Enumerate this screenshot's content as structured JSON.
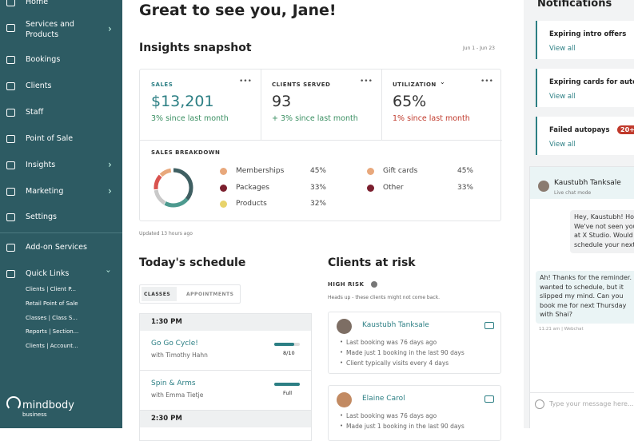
{
  "sidebar": {
    "items": [
      "Home",
      "Services and Products",
      "Bookings",
      "Clients",
      "Staff",
      "Point of Sale",
      "Insights",
      "Marketing",
      "Settings",
      "Add-on Services",
      "Quick Links"
    ],
    "quick_links": [
      "Clients | Client P...",
      "Retail Point of Sale",
      "Classes | Class S...",
      "Reports | Section...",
      "Clients | Account..."
    ],
    "logo": "mindbody",
    "logo_sub": "business"
  },
  "greeting": "Great to see you, Jane!",
  "insights": {
    "title": "Insights snapshot",
    "date_range": "Jun 1 - Jun 23",
    "metrics": [
      {
        "label": "SALES",
        "value": "$13,201",
        "change": "3% since last month"
      },
      {
        "label": "CLIENTS SERVED",
        "value": "93",
        "change": "+ 3% since last month"
      },
      {
        "label": "UTILIZATION",
        "value": "65%",
        "change": "1% since last month"
      }
    ],
    "breakdown": {
      "title": "SALES BREAKDOWN",
      "items": [
        {
          "name": "Memberships",
          "value": "45%"
        },
        {
          "name": "Packages",
          "value": "33%"
        },
        {
          "name": "Products",
          "value": "32%"
        },
        {
          "name": "Gift cards",
          "value": "45%"
        },
        {
          "name": "Other",
          "value": "33%"
        }
      ]
    },
    "updated": "Updated 13 hours ago"
  },
  "schedule": {
    "title": "Today's schedule",
    "tabs": [
      "CLASSES",
      "APPOINTMENTS"
    ],
    "slots": [
      {
        "time": "1:30 PM",
        "classes": [
          {
            "name": "Go Go Cycle!",
            "instructor": "with Timothy Hahn",
            "status": "8/10"
          },
          {
            "name": "Spin & Arms",
            "instructor": "with Emma Tietje",
            "status": "Full"
          }
        ]
      },
      {
        "time": "2:30 PM",
        "classes": []
      }
    ]
  },
  "clients_at_risk": {
    "title": "Clients at risk",
    "level": "HIGH RISK",
    "note": "Heads up - these clients might not come back.",
    "clients": [
      {
        "name": "Kaustubh Tanksale",
        "facts": [
          "Last booking was 76 days ago",
          "Made just 1 booking in the last 90 days",
          "Client typically visits every 4 days"
        ]
      },
      {
        "name": "Elaine Carol",
        "facts": [
          "Last booking was 76 days ago",
          "Made just 1 booking in the last 90 days"
        ]
      }
    ]
  },
  "notifications": {
    "title": "Notifications",
    "items": [
      {
        "title": "Expiring intro offers",
        "link": "View all"
      },
      {
        "title": "Expiring cards for auto",
        "link": "View all"
      },
      {
        "title": "Failed autopays",
        "link": "View all",
        "badge": "20+"
      }
    ]
  },
  "chat": {
    "name": "Kaustubh Tanksale",
    "mode": "Live chat mode",
    "messages": [
      {
        "lines": [
          "Hey, Kaustubh! Hop",
          "We've not seen you",
          "at X Studio. Would",
          "schedule your next"
        ]
      },
      {
        "lines": [
          "Ah! Thanks for the reminder. I",
          "wanted to schedule, but it",
          "slipped my mind. Can you",
          "book me for next Thursday",
          "with Shai?"
        ],
        "meta": "11:21 am | Webchat"
      }
    ],
    "placeholder": "Type your message here..."
  }
}
